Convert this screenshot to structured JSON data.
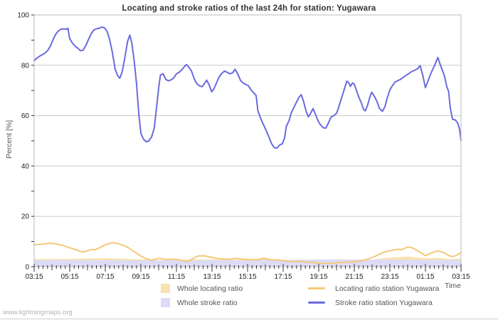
{
  "title": "Locating and stroke ratios of the last 24h for station: Yugawara",
  "watermark": "www.lightningmaps.org",
  "axes": {
    "y_title": "Percent  [%]",
    "x_title": "Time",
    "y_tick_labels": [
      0,
      20,
      40,
      60,
      80,
      100
    ],
    "x_tick_labels": [
      "03:15",
      "05:15",
      "07:15",
      "09:15",
      "11:15",
      "13:15",
      "15:15",
      "17:15",
      "19:15",
      "21:15",
      "23:15",
      "01:15",
      "03:15"
    ]
  },
  "legend": {
    "whole_locating": "Whole locating ratio",
    "whole_stroke": "Whole stroke ratio",
    "station_locating": "Locating ratio station Yugawara",
    "station_stroke": "Stroke ratio station Yugawara"
  },
  "colors": {
    "station_stroke": "#6a6adf",
    "station_locating": "#f5c878",
    "whole_stroke": "#dcdcf8",
    "whole_locating": "#f8e2b0",
    "grid": "#cccccc",
    "border": "#bbbbbb",
    "tick": "#333333",
    "tick_label": "#222222"
  },
  "chart_data": {
    "type": "line",
    "title": "Locating and stroke ratios of the last 24h for station: Yugawara",
    "xlabel": "Time",
    "ylabel": "Percent [%]",
    "x_unit": "hours since 03:15",
    "xlim": [
      0,
      24
    ],
    "ylim": [
      0,
      100
    ],
    "grid": "horizontal",
    "legend_position": "bottom",
    "x_major_ticks_hours": [
      0,
      2,
      4,
      6,
      8,
      10,
      12,
      14,
      16,
      18,
      20,
      22,
      24
    ],
    "series": [
      {
        "name": "Whole locating ratio",
        "kind": "area",
        "color": "#f8e2b0",
        "points": [
          [
            0,
            3.0
          ],
          [
            2,
            3.1
          ],
          [
            4,
            3.4
          ],
          [
            5,
            3.2
          ],
          [
            6,
            2.9
          ],
          [
            7,
            2.6
          ],
          [
            9,
            2.9
          ],
          [
            11,
            2.8
          ],
          [
            12.9,
            3.2
          ],
          [
            14,
            2.5
          ],
          [
            15,
            2.2
          ],
          [
            16,
            1.9
          ],
          [
            17,
            1.9
          ],
          [
            18,
            2.3
          ],
          [
            19,
            2.8
          ],
          [
            19.6,
            3.3
          ],
          [
            20.2,
            3.7
          ],
          [
            21,
            4.0
          ],
          [
            21.5,
            3.7
          ],
          [
            22,
            3.3
          ],
          [
            22.7,
            3.5
          ],
          [
            23.3,
            3.0
          ],
          [
            24,
            3.2
          ]
        ]
      },
      {
        "name": "Whole stroke ratio",
        "kind": "area",
        "color": "#dcdcf8",
        "points": [
          [
            0,
            2.6
          ],
          [
            3,
            2.6
          ],
          [
            6,
            2.5
          ],
          [
            9,
            2.55
          ],
          [
            12,
            2.6
          ],
          [
            14,
            2.7
          ],
          [
            16,
            2.85
          ],
          [
            17.5,
            2.9
          ],
          [
            19,
            2.8
          ],
          [
            21,
            2.75
          ],
          [
            23,
            2.65
          ],
          [
            24,
            2.6
          ]
        ]
      },
      {
        "name": "Locating ratio station Yugawara",
        "kind": "line",
        "color": "#f5c878",
        "points": [
          [
            0,
            8.7
          ],
          [
            0.4,
            8.9
          ],
          [
            0.8,
            9.3
          ],
          [
            1.1,
            9.2
          ],
          [
            1.6,
            8.5
          ],
          [
            2.0,
            7.5
          ],
          [
            2.4,
            6.6
          ],
          [
            2.7,
            5.8
          ],
          [
            3.0,
            6.3
          ],
          [
            3.2,
            6.8
          ],
          [
            3.4,
            6.7
          ],
          [
            3.6,
            7.2
          ],
          [
            4.0,
            8.7
          ],
          [
            4.4,
            9.5
          ],
          [
            4.7,
            9.2
          ],
          [
            5.0,
            8.5
          ],
          [
            5.3,
            7.5
          ],
          [
            5.6,
            6.1
          ],
          [
            6.0,
            4.2
          ],
          [
            6.3,
            3.1
          ],
          [
            6.6,
            2.6
          ],
          [
            7.0,
            3.3
          ],
          [
            7.5,
            2.8
          ],
          [
            7.8,
            3.0
          ],
          [
            8.3,
            2.5
          ],
          [
            8.6,
            1.9
          ],
          [
            9.0,
            3.5
          ],
          [
            9.2,
            4.2
          ],
          [
            9.6,
            4.3
          ],
          [
            10.1,
            3.5
          ],
          [
            10.5,
            3.1
          ],
          [
            10.9,
            2.9
          ],
          [
            11.3,
            3.3
          ],
          [
            11.8,
            2.9
          ],
          [
            12.2,
            2.7
          ],
          [
            12.6,
            2.8
          ],
          [
            12.9,
            3.4
          ],
          [
            13.3,
            2.7
          ],
          [
            13.8,
            2.6
          ],
          [
            14.3,
            2.1
          ],
          [
            15.0,
            2.0
          ],
          [
            15.6,
            1.7
          ],
          [
            16.1,
            1.3
          ],
          [
            16.8,
            1.3
          ],
          [
            17.2,
            1.6
          ],
          [
            17.9,
            1.9
          ],
          [
            18.4,
            2.3
          ],
          [
            18.8,
            3.1
          ],
          [
            19.2,
            4.2
          ],
          [
            19.6,
            5.6
          ],
          [
            20.0,
            6.3
          ],
          [
            20.4,
            6.9
          ],
          [
            20.7,
            6.8
          ],
          [
            21.0,
            7.8
          ],
          [
            21.2,
            7.6
          ],
          [
            21.4,
            7.0
          ],
          [
            21.6,
            6.1
          ],
          [
            22.0,
            4.4
          ],
          [
            22.4,
            5.6
          ],
          [
            22.7,
            6.3
          ],
          [
            23.1,
            5.4
          ],
          [
            23.3,
            4.4
          ],
          [
            23.55,
            4.0
          ],
          [
            23.8,
            4.7
          ],
          [
            24.0,
            5.6
          ]
        ]
      },
      {
        "name": "Stroke ratio station Yugawara",
        "kind": "line",
        "color": "#6a6adf",
        "points": [
          [
            0.0,
            81.8
          ],
          [
            0.15,
            82.8
          ],
          [
            0.3,
            83.6
          ],
          [
            0.45,
            84.2
          ],
          [
            0.6,
            84.8
          ],
          [
            0.75,
            85.8
          ],
          [
            0.9,
            87.5
          ],
          [
            1.05,
            90.0
          ],
          [
            1.2,
            92.2
          ],
          [
            1.35,
            93.6
          ],
          [
            1.5,
            94.3
          ],
          [
            1.65,
            94.5
          ],
          [
            1.8,
            94.3
          ],
          [
            1.9,
            94.7
          ],
          [
            2.0,
            90.6
          ],
          [
            2.15,
            88.8
          ],
          [
            2.3,
            87.6
          ],
          [
            2.45,
            86.8
          ],
          [
            2.6,
            85.8
          ],
          [
            2.75,
            86.0
          ],
          [
            2.9,
            87.8
          ],
          [
            3.05,
            90.2
          ],
          [
            3.2,
            92.4
          ],
          [
            3.35,
            94.0
          ],
          [
            3.5,
            94.5
          ],
          [
            3.65,
            94.7
          ],
          [
            3.8,
            95.2
          ],
          [
            3.95,
            94.9
          ],
          [
            4.1,
            93.5
          ],
          [
            4.25,
            90.0
          ],
          [
            4.4,
            85.0
          ],
          [
            4.55,
            78.5
          ],
          [
            4.7,
            75.8
          ],
          [
            4.82,
            74.9
          ],
          [
            4.95,
            77.5
          ],
          [
            5.1,
            83.0
          ],
          [
            5.25,
            89.5
          ],
          [
            5.38,
            92.0
          ],
          [
            5.5,
            88.5
          ],
          [
            5.62,
            82.0
          ],
          [
            5.75,
            73.0
          ],
          [
            5.88,
            61.0
          ],
          [
            6.0,
            53.0
          ],
          [
            6.15,
            50.6
          ],
          [
            6.3,
            49.6
          ],
          [
            6.45,
            50.0
          ],
          [
            6.6,
            51.5
          ],
          [
            6.75,
            55.0
          ],
          [
            6.88,
            63.0
          ],
          [
            7.0,
            71.0
          ],
          [
            7.1,
            76.2
          ],
          [
            7.25,
            76.6
          ],
          [
            7.4,
            74.4
          ],
          [
            7.55,
            73.8
          ],
          [
            7.7,
            74.2
          ],
          [
            7.85,
            75.0
          ],
          [
            8.0,
            76.6
          ],
          [
            8.15,
            77.2
          ],
          [
            8.3,
            78.2
          ],
          [
            8.45,
            79.5
          ],
          [
            8.55,
            80.3
          ],
          [
            8.7,
            79.2
          ],
          [
            8.85,
            77.6
          ],
          [
            9.0,
            74.6
          ],
          [
            9.15,
            72.6
          ],
          [
            9.3,
            71.8
          ],
          [
            9.45,
            71.5
          ],
          [
            9.6,
            73.0
          ],
          [
            9.7,
            74.1
          ],
          [
            9.85,
            72.0
          ],
          [
            9.98,
            69.5
          ],
          [
            10.1,
            70.5
          ],
          [
            10.25,
            73.0
          ],
          [
            10.4,
            75.4
          ],
          [
            10.55,
            76.8
          ],
          [
            10.7,
            77.7
          ],
          [
            10.85,
            77.2
          ],
          [
            11.0,
            76.6
          ],
          [
            11.15,
            77.0
          ],
          [
            11.3,
            78.4
          ],
          [
            11.45,
            76.5
          ],
          [
            11.6,
            74.0
          ],
          [
            11.75,
            72.9
          ],
          [
            11.9,
            72.4
          ],
          [
            12.05,
            71.8
          ],
          [
            12.2,
            70.2
          ],
          [
            12.35,
            69.0
          ],
          [
            12.48,
            68.0
          ],
          [
            12.58,
            61.9
          ],
          [
            12.75,
            58.6
          ],
          [
            12.9,
            56.3
          ],
          [
            13.05,
            54.0
          ],
          [
            13.2,
            51.5
          ],
          [
            13.35,
            48.8
          ],
          [
            13.5,
            47.3
          ],
          [
            13.65,
            47.1
          ],
          [
            13.8,
            48.3
          ],
          [
            13.95,
            48.8
          ],
          [
            14.08,
            51.2
          ],
          [
            14.18,
            55.8
          ],
          [
            14.33,
            58.0
          ],
          [
            14.45,
            61.0
          ],
          [
            14.6,
            63.2
          ],
          [
            14.75,
            65.4
          ],
          [
            14.9,
            67.4
          ],
          [
            15.02,
            68.3
          ],
          [
            15.15,
            65.5
          ],
          [
            15.3,
            61.5
          ],
          [
            15.42,
            59.5
          ],
          [
            15.55,
            61.0
          ],
          [
            15.68,
            62.8
          ],
          [
            15.82,
            60.5
          ],
          [
            15.95,
            58.1
          ],
          [
            16.1,
            56.3
          ],
          [
            16.25,
            55.2
          ],
          [
            16.4,
            55.0
          ],
          [
            16.55,
            57.2
          ],
          [
            16.7,
            59.5
          ],
          [
            16.85,
            60.0
          ],
          [
            17.0,
            60.9
          ],
          [
            17.1,
            62.8
          ],
          [
            17.22,
            65.6
          ],
          [
            17.32,
            67.8
          ],
          [
            17.45,
            70.8
          ],
          [
            17.58,
            73.7
          ],
          [
            17.7,
            73.0
          ],
          [
            17.78,
            71.6
          ],
          [
            17.9,
            73.0
          ],
          [
            18.0,
            72.5
          ],
          [
            18.12,
            70.0
          ],
          [
            18.25,
            67.4
          ],
          [
            18.4,
            65.0
          ],
          [
            18.52,
            62.5
          ],
          [
            18.62,
            61.9
          ],
          [
            18.75,
            64.2
          ],
          [
            18.88,
            67.5
          ],
          [
            18.98,
            69.3
          ],
          [
            19.12,
            67.8
          ],
          [
            19.28,
            65.5
          ],
          [
            19.42,
            62.8
          ],
          [
            19.58,
            61.7
          ],
          [
            19.72,
            63.5
          ],
          [
            19.85,
            67.0
          ],
          [
            20.0,
            70.2
          ],
          [
            20.15,
            72.0
          ],
          [
            20.3,
            73.4
          ],
          [
            20.45,
            73.9
          ],
          [
            20.6,
            74.4
          ],
          [
            20.75,
            75.2
          ],
          [
            20.9,
            76.0
          ],
          [
            21.05,
            76.6
          ],
          [
            21.2,
            77.4
          ],
          [
            21.38,
            78.0
          ],
          [
            21.55,
            78.6
          ],
          [
            21.7,
            79.9
          ],
          [
            21.85,
            76.0
          ],
          [
            22.0,
            71.1
          ],
          [
            22.15,
            73.9
          ],
          [
            22.3,
            76.7
          ],
          [
            22.45,
            79.0
          ],
          [
            22.58,
            81.0
          ],
          [
            22.7,
            83.1
          ],
          [
            22.82,
            80.5
          ],
          [
            22.95,
            78.0
          ],
          [
            23.08,
            75.5
          ],
          [
            23.2,
            71.5
          ],
          [
            23.3,
            69.7
          ],
          [
            23.4,
            63.0
          ],
          [
            23.52,
            58.6
          ],
          [
            23.68,
            58.3
          ],
          [
            23.82,
            57.0
          ],
          [
            23.92,
            54.5
          ],
          [
            24.0,
            50.2
          ]
        ]
      }
    ]
  }
}
